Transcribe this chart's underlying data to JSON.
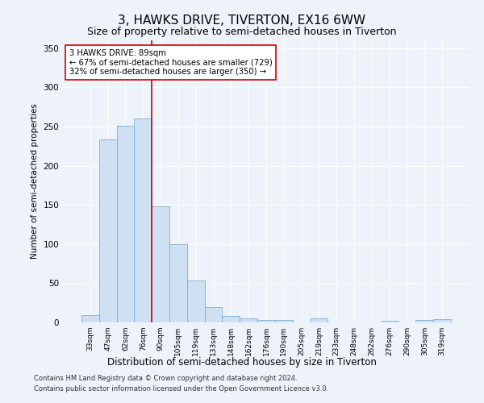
{
  "title": "3, HAWKS DRIVE, TIVERTON, EX16 6WW",
  "subtitle": "Size of property relative to semi-detached houses in Tiverton",
  "xlabel": "Distribution of semi-detached houses by size in Tiverton",
  "ylabel": "Number of semi-detached properties",
  "footnote1": "Contains HM Land Registry data © Crown copyright and database right 2024.",
  "footnote2": "Contains public sector information licensed under the Open Government Licence v3.0.",
  "categories": [
    "33sqm",
    "47sqm",
    "62sqm",
    "76sqm",
    "90sqm",
    "105sqm",
    "119sqm",
    "133sqm",
    "148sqm",
    "162sqm",
    "176sqm",
    "190sqm",
    "205sqm",
    "219sqm",
    "233sqm",
    "248sqm",
    "262sqm",
    "276sqm",
    "290sqm",
    "305sqm",
    "319sqm"
  ],
  "values": [
    9,
    234,
    251,
    260,
    148,
    100,
    53,
    20,
    8,
    5,
    3,
    3,
    0,
    5,
    0,
    0,
    0,
    2,
    0,
    3,
    4
  ],
  "bar_color": "#cfe0f3",
  "bar_edge_color": "#7aadd4",
  "vline_color": "#cc0000",
  "annotation_text": "3 HAWKS DRIVE: 89sqm\n← 67% of semi-detached houses are smaller (729)\n32% of semi-detached houses are larger (350) →",
  "annotation_box_color": "#ffffff",
  "annotation_box_edge": "#cc0000",
  "ylim": [
    0,
    360
  ],
  "yticks": [
    0,
    50,
    100,
    150,
    200,
    250,
    300,
    350
  ],
  "bg_color": "#eef2fb",
  "plot_bg_color": "#eef2fb",
  "title_fontsize": 11,
  "subtitle_fontsize": 9,
  "grid_color": "#ffffff"
}
